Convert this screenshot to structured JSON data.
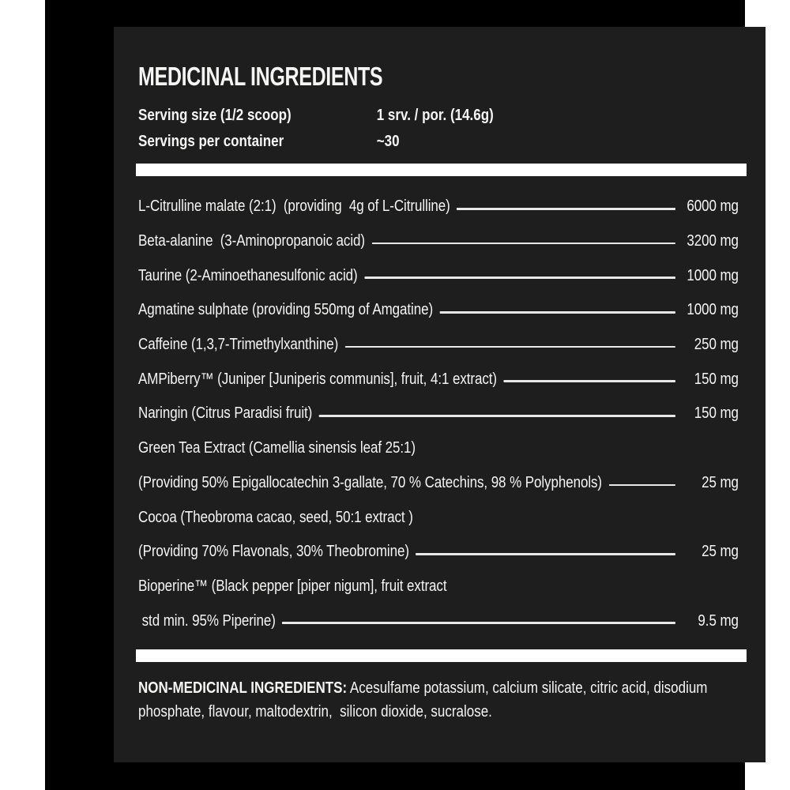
{
  "label": {
    "title": "MEDICINAL INGREDIENTS",
    "serving": {
      "size_label": "Serving size (1/2 scoop)",
      "size_value": "1 srv. / por. (14.6g)",
      "per_container_label": "Servings per container",
      "per_container_value": "~30"
    },
    "ingredients": [
      {
        "name": "L-Citrulline malate (2:1)  (providing  4g of L-Citrulline)",
        "amount": "6000 mg"
      },
      {
        "name": "Beta-alanine  (3-Aminopropanoic acid)",
        "amount": "3200 mg"
      },
      {
        "name": "Taurine (2-Aminoethanesulfonic acid)",
        "amount": "1000 mg"
      },
      {
        "name": "Agmatine sulphate (providing 550mg of Amgatine)",
        "amount": "1000 mg"
      },
      {
        "name": "Caffeine (1,3,7-Trimethylxanthine)",
        "amount": "250 mg"
      },
      {
        "name": "AMPiberry™ (Juniper [Juniperis communis], fruit, 4:1 extract)",
        "amount": "150 mg"
      },
      {
        "name": "Naringin (Citrus Paradisi fruit)",
        "amount": "150 mg"
      },
      {
        "name": "Green Tea Extract (Camellia sinensis leaf 25:1)",
        "amount": ""
      },
      {
        "name": "(Providing 50% Epigallocatechin 3-gallate, 70 % Catechins, 98 % Polyphenols)",
        "amount": "25 mg"
      },
      {
        "name": "Cocoa (Theobroma cacao, seed, 50:1 extract )",
        "amount": ""
      },
      {
        "name": "(Providing 70% Flavonals, 30% Theobromine)",
        "amount": "25 mg"
      },
      {
        "name": "Bioperine™ (Black pepper [piper nigum], fruit extract",
        "amount": ""
      },
      {
        "name": " std min. 95% Piperine)",
        "amount": "9.5 mg"
      }
    ],
    "non_medicinal": {
      "heading": "NON-MEDICINAL INGREDIENTS:",
      "line1_rest": " Acesulfame potassium, calcium silicate, citric acid, disodium",
      "line2": "phosphate, flavour, maltodextrin,  silicon dioxide, sucralose."
    },
    "colors": {
      "page_bg": "#ffffff",
      "frame": "#000000",
      "panel_bg": "#1e1e1f",
      "text": "#f5f5f3",
      "divider": "#ffffff",
      "leader_line": "#e8e8e6"
    }
  }
}
